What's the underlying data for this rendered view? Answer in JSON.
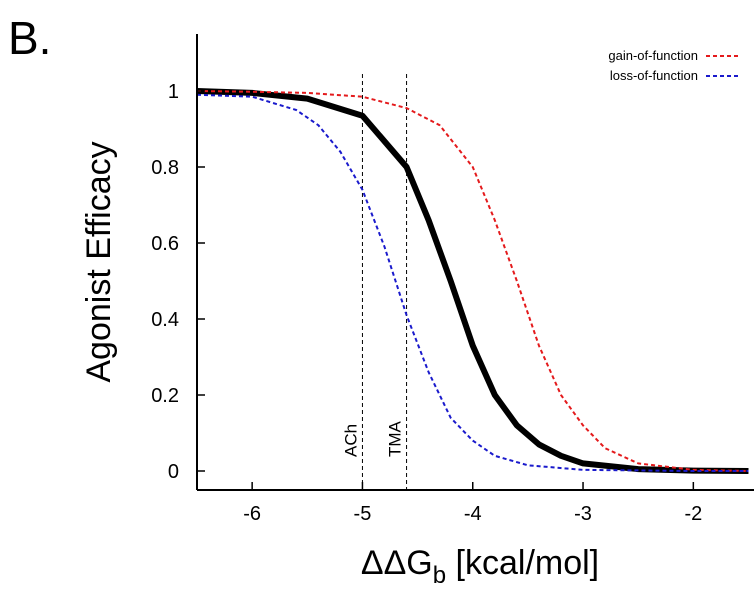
{
  "panel_label": "B.",
  "chart_data": {
    "type": "line",
    "xlabel_main": "ΔΔG",
    "xlabel_sub": "b",
    "xlabel_tail": " [kcal/mol]",
    "ylabel": "Agonist Efficacy",
    "xlim": [
      -6.5,
      -1.45
    ],
    "ylim": [
      -0.05,
      1.15
    ],
    "x_ticks": [
      -6,
      -5,
      -4,
      -3,
      -2
    ],
    "y_ticks": [
      0,
      0.2,
      0.4,
      0.6,
      0.8,
      1
    ],
    "x_tick_labels": [
      "-6",
      "-5",
      "-4",
      "-3",
      "-2"
    ],
    "y_tick_labels": [
      "0",
      "0.2",
      "0.4",
      "0.6",
      "0.8",
      "1"
    ],
    "grid": false,
    "legend_position": "top-right",
    "reference_lines": [
      {
        "x": -5.0,
        "label": "ACh"
      },
      {
        "x": -4.6,
        "label": "TMA"
      }
    ],
    "series": [
      {
        "color": "#000000",
        "style": "solid",
        "x": [
          -6.5,
          -6.0,
          -5.5,
          -5.0,
          -4.6,
          -4.4,
          -4.2,
          -4.0,
          -3.8,
          -3.6,
          -3.4,
          -3.2,
          -3.0,
          -2.5,
          -2.0,
          -1.5
        ],
        "y": [
          1.0,
          0.995,
          0.98,
          0.935,
          0.8,
          0.66,
          0.5,
          0.33,
          0.2,
          0.12,
          0.07,
          0.04,
          0.02,
          0.005,
          0.001,
          0.0
        ]
      },
      {
        "name": "gain-of-function",
        "color": "#e41a1c",
        "style": "dashed",
        "x": [
          -6.5,
          -6.0,
          -5.5,
          -5.0,
          -4.6,
          -4.3,
          -4.0,
          -3.8,
          -3.6,
          -3.4,
          -3.2,
          -3.0,
          -2.8,
          -2.5,
          -2.0,
          -1.5
        ],
        "y": [
          1.0,
          0.998,
          0.995,
          0.985,
          0.955,
          0.91,
          0.8,
          0.66,
          0.5,
          0.33,
          0.2,
          0.12,
          0.06,
          0.02,
          0.003,
          0.0
        ]
      },
      {
        "name": "loss-of-function",
        "color": "#1a1acc",
        "style": "dashed",
        "x": [
          -6.5,
          -6.0,
          -5.6,
          -5.4,
          -5.2,
          -5.0,
          -4.8,
          -4.6,
          -4.4,
          -4.2,
          -4.0,
          -3.8,
          -3.5,
          -3.0,
          -2.0,
          -1.5
        ],
        "y": [
          0.99,
          0.985,
          0.95,
          0.91,
          0.84,
          0.74,
          0.59,
          0.41,
          0.26,
          0.14,
          0.08,
          0.04,
          0.015,
          0.003,
          0.0,
          0.0
        ]
      }
    ]
  }
}
